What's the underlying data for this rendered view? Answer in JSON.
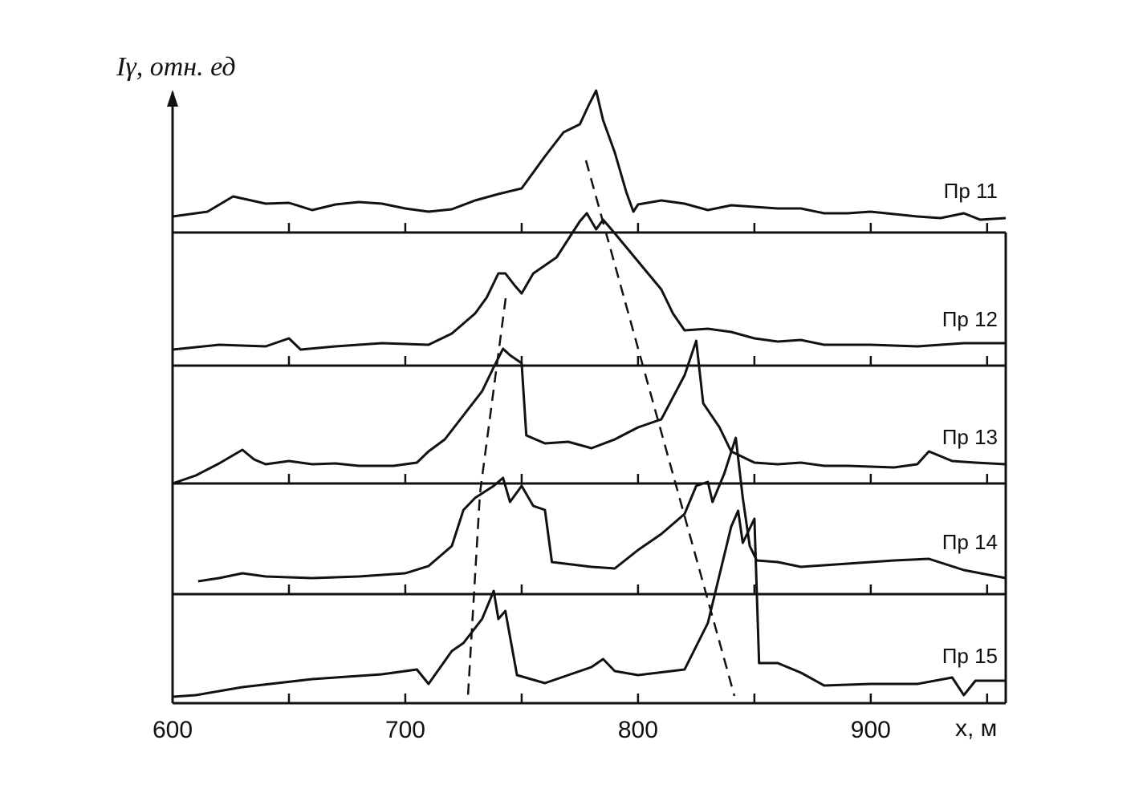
{
  "chart_data": {
    "type": "line",
    "y_label": "Iγ, отн. ед",
    "x_label": "x, м",
    "xlim": [
      600,
      958
    ],
    "xticks": [
      600,
      700,
      800,
      900
    ],
    "minor_xticks": [
      650,
      700,
      750,
      800,
      850,
      900,
      950
    ],
    "series": [
      {
        "name": "Пр 11",
        "color": "#111",
        "x": [
          600,
          615,
          626,
          640,
          650,
          660,
          670,
          680,
          690,
          700,
          710,
          720,
          730,
          740,
          750,
          760,
          768,
          775,
          779,
          782,
          785,
          790,
          795,
          798,
          800,
          810,
          820,
          830,
          840,
          850,
          860,
          870,
          880,
          890,
          900,
          910,
          920,
          930,
          940,
          947,
          958
        ],
        "values": [
          2.0,
          2.6,
          4.5,
          3.6,
          3.7,
          2.8,
          3.5,
          3.8,
          3.6,
          3.0,
          2.6,
          2.9,
          4.0,
          4.8,
          5.5,
          9.5,
          12.5,
          13.5,
          16.0,
          17.7,
          14.0,
          10.0,
          5.0,
          2.6,
          3.5,
          4.0,
          3.6,
          2.8,
          3.4,
          3.2,
          3.0,
          3.0,
          2.4,
          2.4,
          2.6,
          2.3,
          2.0,
          1.8,
          2.4,
          1.6,
          1.8
        ]
      },
      {
        "name": "Пр 12",
        "color": "#111",
        "x": [
          600,
          620,
          640,
          650,
          655,
          670,
          690,
          710,
          720,
          730,
          735,
          740,
          743,
          747,
          750,
          755,
          765,
          775,
          778,
          782,
          785,
          790,
          800,
          810,
          815,
          820,
          830,
          840,
          850,
          860,
          870,
          880,
          900,
          920,
          940,
          958
        ],
        "values": [
          2.0,
          2.6,
          2.4,
          3.4,
          2.0,
          2.4,
          2.8,
          2.6,
          4.0,
          6.5,
          8.5,
          11.5,
          11.5,
          10.0,
          9.0,
          11.5,
          13.5,
          18.0,
          19.0,
          17.0,
          18.2,
          16.5,
          13.0,
          9.5,
          6.5,
          4.4,
          4.6,
          4.2,
          3.4,
          3.0,
          3.2,
          2.6,
          2.6,
          2.4,
          2.8,
          2.8
        ]
      },
      {
        "name": "Пр 13",
        "color": "#111",
        "x": [
          600,
          610,
          620,
          630,
          635,
          640,
          650,
          660,
          670,
          680,
          695,
          705,
          710,
          717,
          725,
          733,
          738,
          742,
          745,
          750,
          752,
          760,
          770,
          780,
          790,
          800,
          810,
          820,
          825,
          828,
          835,
          840,
          850,
          860,
          870,
          880,
          890,
          910,
          920,
          925,
          935,
          945,
          958
        ],
        "values": [
          0.0,
          1.0,
          2.5,
          4.2,
          3.0,
          2.4,
          2.8,
          2.4,
          2.5,
          2.2,
          2.2,
          2.6,
          4.0,
          5.5,
          8.5,
          11.5,
          14.5,
          16.8,
          16.0,
          15.0,
          6.0,
          5.0,
          5.2,
          4.4,
          5.5,
          7.0,
          8.0,
          13.5,
          17.8,
          10.0,
          7.0,
          4.0,
          2.6,
          2.4,
          2.6,
          2.2,
          2.2,
          2.0,
          2.4,
          4.0,
          2.8,
          2.6,
          2.4
        ]
      },
      {
        "name": "Пр 14",
        "color": "#111",
        "x": [
          611,
          620,
          630,
          640,
          660,
          680,
          700,
          710,
          720,
          725,
          730,
          738,
          742,
          745,
          750,
          755,
          760,
          763,
          780,
          790,
          800,
          810,
          820,
          825,
          830,
          832,
          837,
          842,
          845,
          848,
          851,
          860,
          870,
          890,
          910,
          925,
          940,
          958
        ],
        "values": [
          1.6,
          2.0,
          2.6,
          2.2,
          2.0,
          2.2,
          2.6,
          3.5,
          6.0,
          10.5,
          12.0,
          13.5,
          14.5,
          11.5,
          13.5,
          11.0,
          10.5,
          4.0,
          3.4,
          3.2,
          5.5,
          7.5,
          10.0,
          13.5,
          14.0,
          11.5,
          15.0,
          19.5,
          12.0,
          6.0,
          4.2,
          4.0,
          3.4,
          3.8,
          4.2,
          4.4,
          3.0,
          2.0
        ]
      },
      {
        "name": "Пр 15",
        "color": "#111",
        "x": [
          600,
          610,
          630,
          660,
          690,
          705,
          710,
          720,
          725,
          733,
          738,
          740,
          743,
          748,
          760,
          780,
          785,
          790,
          800,
          820,
          830,
          840,
          843,
          845,
          850,
          852,
          860,
          870,
          880,
          900,
          920,
          935,
          940,
          945,
          958
        ],
        "values": [
          0.8,
          1.0,
          2.0,
          3.0,
          3.6,
          4.2,
          2.4,
          6.5,
          7.5,
          10.5,
          14.0,
          10.5,
          11.5,
          3.5,
          2.5,
          4.5,
          5.5,
          4.0,
          3.5,
          4.2,
          10.0,
          22.0,
          24.0,
          20.0,
          23.0,
          5.0,
          5.0,
          3.8,
          2.2,
          2.4,
          2.4,
          3.2,
          1.0,
          2.8,
          2.8
        ]
      }
    ]
  }
}
